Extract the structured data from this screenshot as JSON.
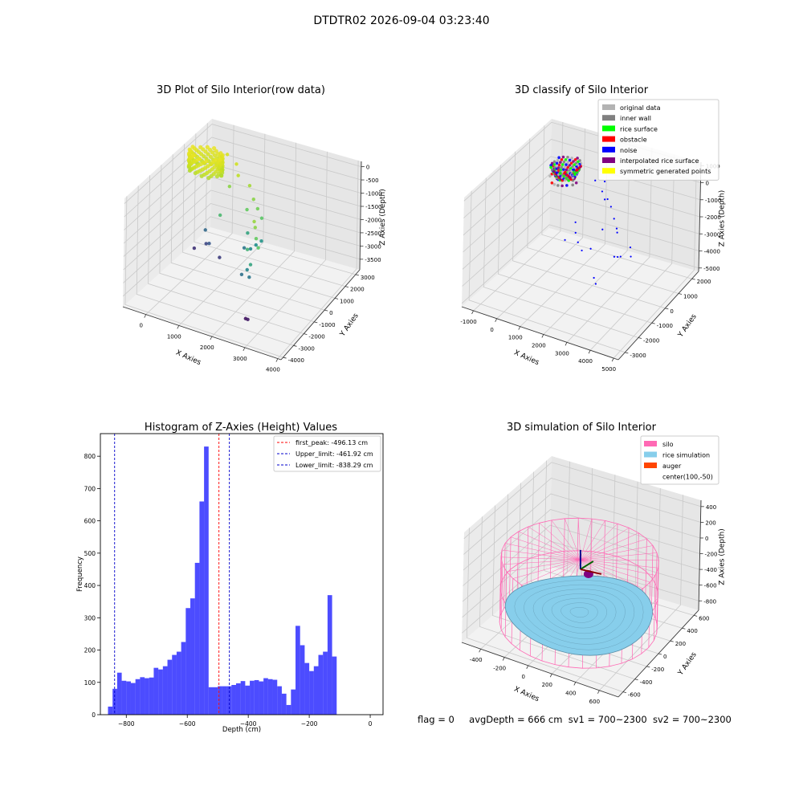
{
  "figure": {
    "title": "DTDTR02 2026-09-04 03:23:40",
    "status": {
      "flag": "flag = 0",
      "avg": "avgDepth = 666 cm",
      "sv1": "sv1 = 700~2300",
      "sv2": "sv2 = 700~2300"
    }
  },
  "chart_data": [
    {
      "type": "scatter",
      "title": "3D Plot of Silo Interior(row data)",
      "xlabel": "X Axies",
      "ylabel": "Y Axies",
      "zlabel": "Z Axies (Depth)",
      "x_ticks": [
        "0",
        "1000",
        "2000",
        "3000",
        "4000"
      ],
      "y_ticks": [
        "-4000",
        "-3000",
        "-2000",
        "-1000",
        "0",
        "1000",
        "2000",
        "3000"
      ],
      "z_ticks": [
        "0",
        "-500",
        "-1000",
        "-1500",
        "-2000",
        "-2500",
        "-3000",
        "-3500"
      ],
      "xlim": [
        -700,
        4100
      ],
      "ylim": [
        -4200,
        3400
      ],
      "zlim": [
        -3900,
        200
      ],
      "colormap": [
        "#440154",
        "#3b528b",
        "#21918c",
        "#5ec962",
        "#c8e020",
        "#fde725"
      ],
      "cluster": {
        "center": [
          -300,
          1800
        ],
        "radius": 500,
        "z_range": [
          -1000,
          -300
        ]
      },
      "points": [
        [
          200,
          2300,
          -400
        ],
        [
          600,
          2000,
          -500
        ],
        [
          800,
          1600,
          -700
        ],
        [
          1200,
          1500,
          -900
        ],
        [
          600,
          1400,
          -1100
        ],
        [
          1500,
          1000,
          -1100
        ],
        [
          1700,
          800,
          -1300
        ],
        [
          1400,
          700,
          -1400
        ],
        [
          1900,
          600,
          -1500
        ],
        [
          700,
          300,
          -1700
        ],
        [
          1600,
          200,
          -2000
        ],
        [
          2100,
          -700,
          -1000
        ],
        [
          2200,
          -900,
          -1100
        ],
        [
          2300,
          -1100,
          -1400
        ],
        [
          2500,
          -1500,
          -1500
        ],
        [
          2100,
          -1300,
          -1800
        ],
        [
          2400,
          -1900,
          -2000
        ],
        [
          1800,
          -100,
          -2400
        ],
        [
          1900,
          100,
          -2300
        ],
        [
          2000,
          300,
          -2200
        ],
        [
          1500,
          200,
          -2600
        ],
        [
          2200,
          -1600,
          -2400
        ],
        [
          2300,
          -1700,
          -2600
        ],
        [
          2000,
          -1500,
          -2700
        ],
        [
          0,
          1000,
          -2800
        ],
        [
          300,
          500,
          -3000
        ],
        [
          100,
          800,
          -3200
        ],
        [
          -200,
          600,
          -3400
        ],
        [
          700,
          300,
          -3300
        ],
        [
          2500,
          -2600,
          -3700
        ],
        [
          2600,
          -2700,
          -3650
        ]
      ]
    },
    {
      "type": "scatter",
      "title": "3D classify of Silo Interior",
      "xlabel": "X Axies",
      "ylabel": "Y Axies",
      "zlabel": "Z Axies (Depth)",
      "x_ticks": [
        "-1000",
        "0",
        "1000",
        "2000",
        "3000",
        "4000",
        "5000"
      ],
      "y_ticks": [
        "-3000",
        "-2000",
        "-1000",
        "0",
        "1000",
        "2000"
      ],
      "z_ticks": [
        "1000",
        "0",
        "-1000",
        "-2000",
        "-3000",
        "-4000",
        "-5000"
      ],
      "xlim": [
        -1500,
        5200
      ],
      "ylim": [
        -3500,
        2500
      ],
      "zlim": [
        -5200,
        1200
      ],
      "legend": [
        {
          "label": "original data",
          "color": "#b3b3b3"
        },
        {
          "label": "inner wall",
          "color": "#808080"
        },
        {
          "label": "rice surface",
          "color": "#00ff00"
        },
        {
          "label": "obstacle",
          "color": "#ff0000"
        },
        {
          "label": "noise",
          "color": "#0000ff"
        },
        {
          "label": "interpolated rice surface",
          "color": "#800080"
        },
        {
          "label": "symmetric generated points",
          "color": "#ffff00"
        }
      ],
      "cluster": {
        "center": [
          -200,
          1500
        ],
        "radius": 600,
        "z_range": [
          -1000,
          -200
        ]
      },
      "noise_points": [
        [
          1300,
          1200,
          -300
        ],
        [
          1600,
          1400,
          -400
        ],
        [
          1800,
          900,
          -500
        ],
        [
          2100,
          600,
          -600
        ],
        [
          2500,
          400,
          -700
        ],
        [
          3000,
          -200,
          -700
        ],
        [
          3500,
          -800,
          -800
        ],
        [
          3300,
          -500,
          -900
        ],
        [
          2800,
          -700,
          -1000
        ],
        [
          4200,
          -1000,
          -1200
        ],
        [
          4400,
          -1300,
          -1400
        ],
        [
          3800,
          -1500,
          -1500
        ],
        [
          3900,
          -1200,
          -1700
        ],
        [
          3600,
          -900,
          -2100
        ],
        [
          2600,
          -1200,
          -1800
        ],
        [
          1500,
          1800,
          -1800
        ],
        [
          100,
          1800,
          -3700
        ],
        [
          300,
          1500,
          -4000
        ],
        [
          600,
          1200,
          -4200
        ],
        [
          900,
          1000,
          -4400
        ],
        [
          -100,
          1400,
          -4500
        ],
        [
          3000,
          -1600,
          -3000
        ],
        [
          3200,
          -1800,
          -3100
        ]
      ]
    },
    {
      "type": "bar",
      "title": "Histogram of Z-Axies (Height) Values",
      "xlabel": "Depth (cm)",
      "ylabel": "Frequency",
      "xlim": [
        -885,
        42
      ],
      "ylim": [
        0,
        870
      ],
      "x_ticks": [
        -800,
        -600,
        -400,
        -200,
        0
      ],
      "y_ticks": [
        0,
        100,
        200,
        300,
        400,
        500,
        600,
        700,
        800
      ],
      "bar_color": "#0000ff",
      "bin_start": -860,
      "bin_width": 15,
      "values": [
        25,
        80,
        130,
        105,
        103,
        98,
        110,
        116,
        113,
        115,
        145,
        140,
        150,
        170,
        185,
        195,
        225,
        330,
        360,
        470,
        660,
        830,
        85,
        85,
        88,
        88,
        88,
        92,
        97,
        104,
        90,
        105,
        107,
        103,
        113,
        110,
        108,
        88,
        65,
        30,
        78,
        275,
        215,
        160,
        135,
        150,
        185,
        195,
        370,
        180
      ],
      "lines": [
        {
          "label": "first_peak: -496.13 cm",
          "value": -496.13,
          "color": "#ff0000"
        },
        {
          "label": "Upper_limit: -461.92 cm",
          "value": -461.92,
          "color": "#0000cc"
        },
        {
          "label": "Lower_limit: -838.29 cm",
          "value": -838.29,
          "color": "#0000cc"
        }
      ]
    },
    {
      "type": "surface",
      "title": "3D simulation of Silo Interior",
      "xlabel": "X Axies",
      "ylabel": "Y Axies",
      "zlabel": "Z Axies (Depth)",
      "x_ticks": [
        "-400",
        "-200",
        "0",
        "200",
        "400",
        "600"
      ],
      "y_ticks": [
        "-600",
        "-400",
        "-200",
        "0",
        "200",
        "400",
        "600"
      ],
      "z_ticks": [
        "400",
        "200",
        "0",
        "-200",
        "-400",
        "-600",
        "-800"
      ],
      "xlim": [
        -560,
        760
      ],
      "ylim": [
        -680,
        680
      ],
      "zlim": [
        -920,
        480
      ],
      "legend": [
        {
          "label": "silo",
          "color": "#ff69b4"
        },
        {
          "label": "rice simulation",
          "color": "#87ceeb"
        },
        {
          "label": "auger",
          "color": "#ff4500"
        },
        {
          "label": "center(100,-50)",
          "color": ""
        }
      ],
      "silo": {
        "radius": 600,
        "z_top": 0,
        "z_bottom": -830
      },
      "rice": {
        "radius": 560,
        "z_level": -666
      },
      "auger_center": [
        100,
        -50
      ]
    }
  ]
}
